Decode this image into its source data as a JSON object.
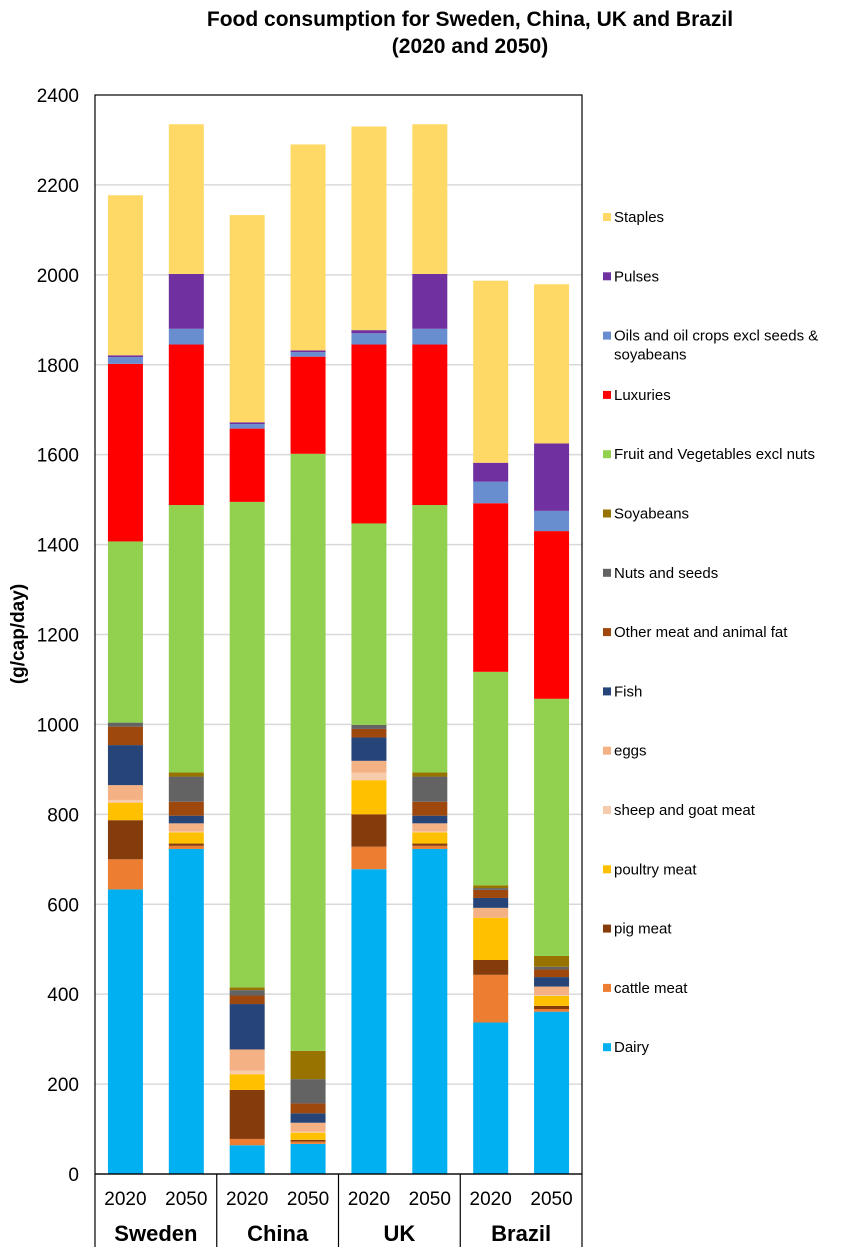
{
  "chart_data": {
    "type": "bar",
    "stacked": true,
    "title": "Food consumption for Sweden, China, UK and Brazil",
    "subtitle": "(2020 and 2050)",
    "xlabel": "",
    "ylabel": "(g/cap/day)",
    "ylim": [
      0,
      2400
    ],
    "yticks": [
      0,
      200,
      400,
      600,
      800,
      1000,
      1200,
      1400,
      1600,
      1800,
      2000,
      2200,
      2400
    ],
    "grid": true,
    "legend_position": "right",
    "groups": [
      "Sweden",
      "China",
      "UK",
      "Brazil"
    ],
    "categories": [
      "2020",
      "2050",
      "2020",
      "2050",
      "2020",
      "2050",
      "2020",
      "2050"
    ],
    "series": [
      {
        "name": "Dairy",
        "color": "#00B0F0",
        "values": [
          633,
          723,
          64,
          67,
          678,
          723,
          337,
          361
        ]
      },
      {
        "name": "cattle meat",
        "color": "#ED7D31",
        "values": [
          67,
          7,
          14,
          5,
          50,
          7,
          106,
          6
        ]
      },
      {
        "name": "pig meat",
        "color": "#843C0C",
        "values": [
          87,
          5,
          109,
          4,
          72,
          5,
          33,
          7
        ]
      },
      {
        "name": "poultry meat",
        "color": "#FFC000",
        "values": [
          39,
          25,
          35,
          16,
          76,
          25,
          94,
          22
        ]
      },
      {
        "name": "sheep and goat meat",
        "color": "#F8CBAD",
        "values": [
          6,
          2,
          8,
          2,
          17,
          2,
          0,
          2
        ]
      },
      {
        "name": "eggs",
        "color": "#F4B183",
        "values": [
          33,
          18,
          47,
          20,
          26,
          18,
          22,
          19
        ]
      },
      {
        "name": "Fish",
        "color": "#264478",
        "values": [
          89,
          17,
          101,
          21,
          52,
          17,
          22,
          21
        ]
      },
      {
        "name": "Other meat and animal fat",
        "color": "#9E480E",
        "values": [
          41,
          31,
          19,
          22,
          19,
          31,
          18,
          17
        ]
      },
      {
        "name": "Nuts and seeds",
        "color": "#636363",
        "values": [
          9,
          56,
          12,
          54,
          9,
          56,
          4,
          6
        ]
      },
      {
        "name": "Soyabeans",
        "color": "#997300",
        "values": [
          0,
          9,
          6,
          63,
          0,
          9,
          6,
          24
        ]
      },
      {
        "name": "Fruit and Vegetables excl nuts",
        "color": "#92D050",
        "values": [
          403,
          595,
          1080,
          1328,
          448,
          595,
          475,
          572
        ]
      },
      {
        "name": "Luxuries",
        "color": "#FF0000",
        "values": [
          395,
          357,
          163,
          216,
          398,
          357,
          375,
          373
        ]
      },
      {
        "name": "Oils and oil crops excl seeds & soyabeans",
        "color": "#698ED0",
        "values": [
          15,
          35,
          10,
          10,
          25,
          35,
          48,
          45
        ]
      },
      {
        "name": "Pulses",
        "color": "#7030A0",
        "values": [
          4,
          122,
          4,
          4,
          7,
          122,
          42,
          150
        ]
      },
      {
        "name": "Staples",
        "color": "#FFD966",
        "values": [
          356,
          333,
          461,
          458,
          453,
          333,
          405,
          354
        ]
      }
    ]
  }
}
